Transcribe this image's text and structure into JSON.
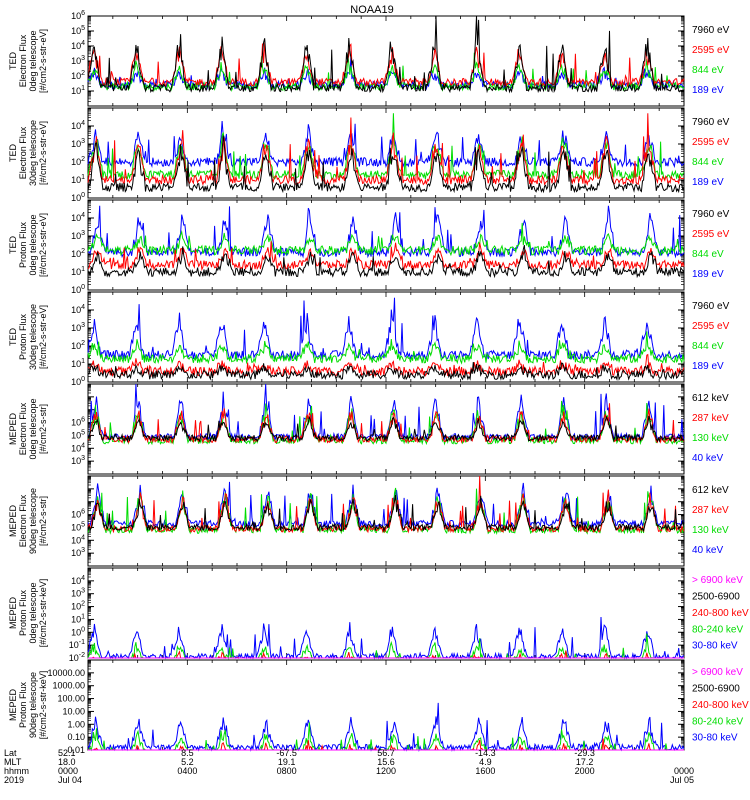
{
  "title": "NOAA19",
  "colors": {
    "black": "#000000",
    "red": "#ff0000",
    "green": "#00dd00",
    "blue": "#0000ff",
    "magenta": "#ff00ff"
  },
  "chart_data": [
    {
      "type": "line",
      "id": "ted-e-0",
      "ylabel": [
        "TED",
        "Electron Flux",
        "0deg telescope",
        "[#/cm2-s-str-eV]"
      ],
      "ylim": [
        1,
        1000000
      ],
      "log": true,
      "yticks": [
        "10^1",
        "10^2",
        "10^3",
        "10^4",
        "10^5",
        "10^6"
      ],
      "series": [
        {
          "name": "7960 eV",
          "color": "black"
        },
        {
          "name": "2595 eV",
          "color": "red"
        },
        {
          "name": "844 eV",
          "color": "green"
        },
        {
          "name": "189 eV",
          "color": "blue"
        }
      ],
      "baseline": [
        1.2,
        1.6,
        1.3,
        1.4
      ],
      "spike": [
        3.5,
        2.4,
        1.6,
        1.0
      ]
    },
    {
      "type": "line",
      "id": "ted-e-30",
      "ylabel": [
        "TED",
        "Electron Flux",
        "30deg telescope",
        "[#/cm2-s-str-eV]"
      ],
      "ylim": [
        1,
        100000
      ],
      "log": true,
      "yticks": [
        "10^0",
        "10^1",
        "10^2",
        "10^3",
        "10^4"
      ],
      "series": [
        {
          "name": "7960 eV",
          "color": "black"
        },
        {
          "name": "2595 eV",
          "color": "red"
        },
        {
          "name": "844 eV",
          "color": "green"
        },
        {
          "name": "189 eV",
          "color": "blue"
        }
      ],
      "baseline": [
        0.6,
        1.0,
        1.3,
        2.0
      ],
      "spike": [
        2.4,
        2.5,
        2.2,
        1.8
      ]
    },
    {
      "type": "line",
      "id": "ted-p-0",
      "ylabel": [
        "TED",
        "Proton Flux",
        "0deg telescope",
        "[#/cm2-s-str-eV]"
      ],
      "ylim": [
        1,
        100000
      ],
      "log": true,
      "yticks": [
        "10^0",
        "10^1",
        "10^2",
        "10^3",
        "10^4"
      ],
      "series": [
        {
          "name": "7960 eV",
          "color": "black"
        },
        {
          "name": "2595 eV",
          "color": "red"
        },
        {
          "name": "844 eV",
          "color": "green"
        },
        {
          "name": "189 eV",
          "color": "blue"
        }
      ],
      "baseline": [
        1.0,
        1.4,
        2.2,
        2.1
      ],
      "spike": [
        1.2,
        1.0,
        0.9,
        2.3
      ]
    },
    {
      "type": "line",
      "id": "ted-p-30",
      "ylabel": [
        "TED",
        "Proton Flux",
        "30deg telescope",
        "[#/cm2-s-str-eV]"
      ],
      "ylim": [
        1,
        100000
      ],
      "log": true,
      "yticks": [
        "10^0",
        "10^1",
        "10^2",
        "10^3",
        "10^4"
      ],
      "series": [
        {
          "name": "7960 eV",
          "color": "black"
        },
        {
          "name": "2595 eV",
          "color": "red"
        },
        {
          "name": "844 eV",
          "color": "green"
        },
        {
          "name": "189 eV",
          "color": "blue"
        }
      ],
      "baseline": [
        0.4,
        0.6,
        1.3,
        1.5
      ],
      "spike": [
        0.5,
        0.5,
        0.9,
        2.3
      ]
    },
    {
      "type": "line",
      "id": "meped-e-0",
      "ylabel": [
        "MEPED",
        "Electron Flux",
        "0deg telescope",
        "[#/cm2-s-str]"
      ],
      "ylim": [
        100,
        1000000000
      ],
      "log": true,
      "yticks": [
        "10^3",
        "10^4",
        "10^5",
        "10^6"
      ],
      "series": [
        {
          "name": "612 keV",
          "color": "black"
        },
        {
          "name": "287 keV",
          "color": "red"
        },
        {
          "name": "130 keV",
          "color": "green"
        },
        {
          "name": "40 keV",
          "color": "blue"
        }
      ],
      "baseline": [
        2.8,
        2.7,
        2.6,
        2.9
      ],
      "spike": [
        1.6,
        2.3,
        2.6,
        3.2
      ]
    },
    {
      "type": "line",
      "id": "meped-e-90",
      "ylabel": [
        "MEPED",
        "Electron Flux",
        "90deg telescope",
        "[#/cm2-s-str]"
      ],
      "ylim": [
        100,
        1000000000
      ],
      "log": true,
      "yticks": [
        "10^3",
        "10^4",
        "10^5",
        "10^6"
      ],
      "series": [
        {
          "name": "612 keV",
          "color": "black"
        },
        {
          "name": "287 keV",
          "color": "red"
        },
        {
          "name": "130 keV",
          "color": "green"
        },
        {
          "name": "40 keV",
          "color": "blue"
        }
      ],
      "baseline": [
        3.0,
        2.9,
        2.8,
        3.3
      ],
      "spike": [
        2.2,
        2.8,
        3.0,
        3.0
      ]
    },
    {
      "type": "line",
      "id": "meped-p-0",
      "ylabel": [
        "MEPED",
        "Proton Flux",
        "0deg telescope",
        "[#/cm2-s-str-keV]"
      ],
      "ylim": [
        0.01,
        100000
      ],
      "log": true,
      "yticks": [
        "10^-2",
        "10^-1",
        "10^0",
        "10^1",
        "10^2",
        "10^3",
        "10^4"
      ],
      "series": [
        {
          "name": "> 6900 keV",
          "color": "magenta"
        },
        {
          "name": "2500-6900",
          "color": "black"
        },
        {
          "name": "240-800 keV",
          "color": "red"
        },
        {
          "name": "80-240 keV",
          "color": "green"
        },
        {
          "name": "30-80 keV",
          "color": "blue"
        }
      ],
      "baseline": [
        -1.5,
        -1.2,
        -0.8,
        -0.3,
        0.1
      ],
      "spike": [
        0.6,
        0.6,
        1.2,
        1.4,
        2.6
      ]
    },
    {
      "type": "line",
      "id": "meped-p-90",
      "ylabel": [
        "MEPED",
        "Proton Flux",
        "90deg telescope",
        "[#/cm2-s-str-keV]"
      ],
      "ylim": [
        0.01,
        100000
      ],
      "log": true,
      "yticks": [
        "0.01",
        "0.10",
        "1.00",
        "10.00",
        "100.00",
        "1000.00",
        "10000.00"
      ],
      "series": [
        {
          "name": "> 6900 keV",
          "color": "magenta"
        },
        {
          "name": "2500-6900",
          "color": "black"
        },
        {
          "name": "240-800 keV",
          "color": "red"
        },
        {
          "name": "80-240 keV",
          "color": "green"
        },
        {
          "name": "30-80 keV",
          "color": "blue"
        }
      ],
      "baseline": [
        -1.5,
        -1.2,
        -0.8,
        -0.2,
        0.2
      ],
      "spike": [
        0.6,
        0.6,
        1.3,
        1.5,
        2.4
      ]
    }
  ],
  "xaxis": {
    "row_labels": [
      "Lat",
      "MLT",
      "hhmm",
      "2019"
    ],
    "columns": [
      {
        "lat": "52.1",
        "mlt": "18.0",
        "hhmm": "0000",
        "date": "Jul 04"
      },
      {
        "lat": "8.5",
        "mlt": "5.2",
        "hhmm": "0400",
        "date": ""
      },
      {
        "lat": "-67.5",
        "mlt": "19.1",
        "hhmm": "0800",
        "date": ""
      },
      {
        "lat": "56.7",
        "mlt": "15.6",
        "hhmm": "1200",
        "date": ""
      },
      {
        "lat": "-14.3",
        "mlt": "4.9",
        "hhmm": "1600",
        "date": ""
      },
      {
        "lat": "-29.3",
        "mlt": "17.2",
        "hhmm": "2000",
        "date": ""
      },
      {
        "lat": "",
        "mlt": "",
        "hhmm": "0000",
        "date": "Jul 05"
      }
    ]
  }
}
